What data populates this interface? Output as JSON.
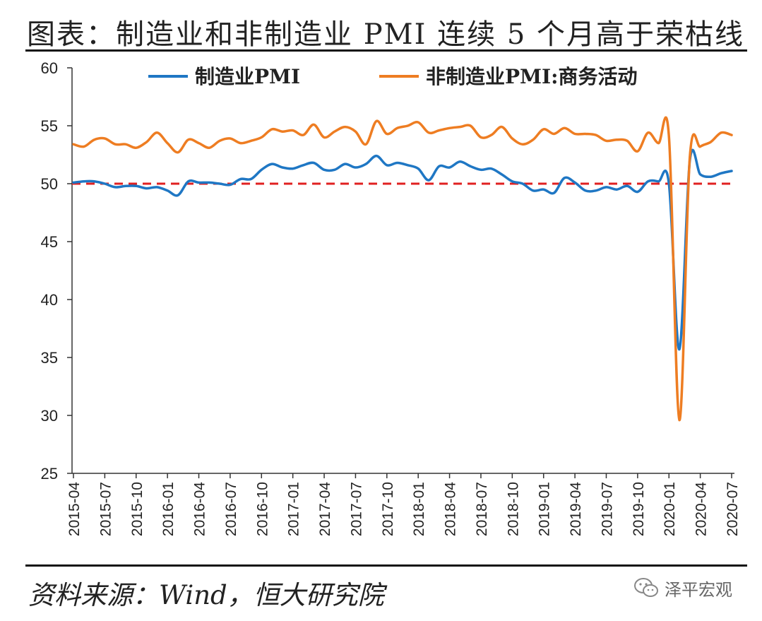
{
  "header": {
    "title": "图表：制造业和非制造业 PMI 连续 5 个月高于荣枯线"
  },
  "footer": {
    "source": "资料来源：Wind，恒大研究院",
    "watermark": "泽平宏观",
    "watermark_icon": "wechat-icon"
  },
  "colors": {
    "manufacturing": "#1f77c4",
    "non_manufacturing": "#ee7d22",
    "threshold": "#e02020",
    "axis": "#333333"
  },
  "chart_data": {
    "type": "line",
    "title": "",
    "xlabel": "",
    "ylabel": "",
    "ylim": [
      25,
      60
    ],
    "yticks": [
      25,
      30,
      35,
      40,
      45,
      50,
      55,
      60
    ],
    "grid": false,
    "legend_position": "top",
    "threshold": {
      "value": 50,
      "style": "dashed"
    },
    "x_tick_labels": [
      "2015-04",
      "2015-07",
      "2015-10",
      "2016-01",
      "2016-04",
      "2016-07",
      "2016-10",
      "2017-01",
      "2017-04",
      "2017-07",
      "2017-10",
      "2018-01",
      "2018-04",
      "2018-07",
      "2018-10",
      "2019-01",
      "2019-04",
      "2019-07",
      "2019-10",
      "2020-01",
      "2020-04",
      "2020-07"
    ],
    "x": [
      "2015-04",
      "2015-05",
      "2015-06",
      "2015-07",
      "2015-08",
      "2015-09",
      "2015-10",
      "2015-11",
      "2015-12",
      "2016-01",
      "2016-02",
      "2016-03",
      "2016-04",
      "2016-05",
      "2016-06",
      "2016-07",
      "2016-08",
      "2016-09",
      "2016-10",
      "2016-11",
      "2016-12",
      "2017-01",
      "2017-02",
      "2017-03",
      "2017-04",
      "2017-05",
      "2017-06",
      "2017-07",
      "2017-08",
      "2017-09",
      "2017-10",
      "2017-11",
      "2017-12",
      "2018-01",
      "2018-02",
      "2018-03",
      "2018-04",
      "2018-05",
      "2018-06",
      "2018-07",
      "2018-08",
      "2018-09",
      "2018-10",
      "2018-11",
      "2018-12",
      "2019-01",
      "2019-02",
      "2019-03",
      "2019-04",
      "2019-05",
      "2019-06",
      "2019-07",
      "2019-08",
      "2019-09",
      "2019-10",
      "2019-11",
      "2019-12",
      "2020-01",
      "2020-02",
      "2020-03",
      "2020-04",
      "2020-05",
      "2020-06",
      "2020-07"
    ],
    "series": [
      {
        "name": "制造业PMI",
        "color": "#1f77c4",
        "values": [
          50.1,
          50.2,
          50.2,
          50.0,
          49.7,
          49.8,
          49.8,
          49.6,
          49.7,
          49.4,
          49.0,
          50.2,
          50.1,
          50.1,
          50.0,
          49.9,
          50.4,
          50.4,
          51.2,
          51.7,
          51.4,
          51.3,
          51.6,
          51.8,
          51.2,
          51.2,
          51.7,
          51.4,
          51.7,
          52.4,
          51.6,
          51.8,
          51.6,
          51.3,
          50.3,
          51.5,
          51.4,
          51.9,
          51.5,
          51.2,
          51.3,
          50.8,
          50.2,
          50.0,
          49.4,
          49.5,
          49.2,
          50.5,
          50.1,
          49.4,
          49.4,
          49.7,
          49.5,
          49.8,
          49.3,
          50.2,
          50.2,
          50.0,
          35.7,
          52.0,
          50.8,
          50.6,
          50.9,
          51.1
        ]
      },
      {
        "name": "非制造业PMI:商务活动",
        "color": "#ee7d22",
        "values": [
          53.4,
          53.2,
          53.8,
          53.9,
          53.4,
          53.4,
          53.1,
          53.6,
          54.4,
          53.5,
          52.7,
          53.8,
          53.5,
          53.1,
          53.7,
          53.9,
          53.5,
          53.7,
          54.0,
          54.7,
          54.5,
          54.6,
          54.2,
          55.1,
          54.0,
          54.5,
          54.9,
          54.5,
          53.4,
          55.4,
          54.3,
          54.8,
          55.0,
          55.3,
          54.4,
          54.6,
          54.8,
          54.9,
          55.0,
          54.0,
          54.2,
          54.9,
          53.9,
          53.4,
          53.8,
          54.7,
          54.3,
          54.8,
          54.3,
          54.3,
          54.2,
          53.7,
          53.8,
          53.7,
          52.8,
          54.4,
          53.5,
          54.1,
          29.6,
          52.3,
          53.2,
          53.6,
          54.4,
          54.2
        ]
      }
    ]
  }
}
